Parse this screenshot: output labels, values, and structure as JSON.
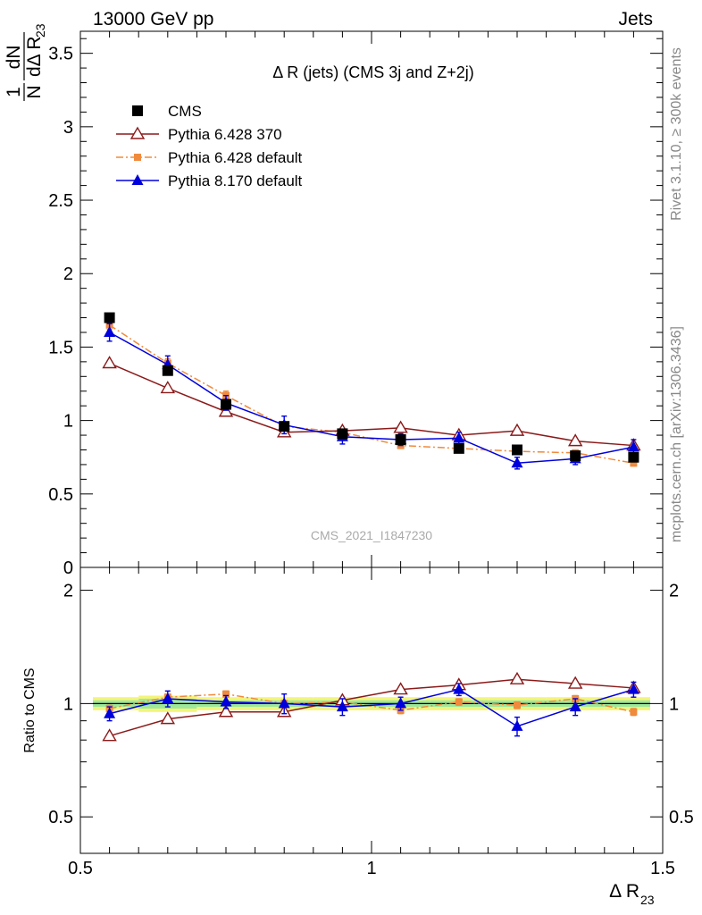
{
  "header": {
    "left": "13000 GeV pp",
    "right": "Jets"
  },
  "side_text": {
    "rivet": "Rivet 3.1.10, ≥ 300k events",
    "mcplots": "mcplots.cern.ch [arXiv:1306.3436]"
  },
  "watermark": "CMS_2021_I1847230",
  "chart_data": [
    {
      "type": "scatter",
      "panel": "main",
      "title": "Δ R (jets) (CMS 3j and Z+2j)",
      "ylabel_prefix": "1",
      "ylabel_num": "dN",
      "ylabel_den_n": "N",
      "ylabel_den": "dΔ R",
      "ylabel_sub": "23",
      "xlim": [
        0.5,
        1.5
      ],
      "ylim": [
        0,
        3.65
      ],
      "yticks": [
        0,
        0.5,
        1,
        1.5,
        2,
        2.5,
        3,
        3.5
      ],
      "yticklabels": [
        "0",
        "0.5",
        "1",
        "1.5",
        "2",
        "2.5",
        "3",
        "3.5"
      ],
      "x": [
        0.55,
        0.65,
        0.75,
        0.85,
        0.95,
        1.05,
        1.15,
        1.25,
        1.35,
        1.45
      ],
      "legend_position": "top-left",
      "series": [
        {
          "name": "CMS",
          "color": "#000000",
          "marker": "square",
          "line": "none",
          "values": [
            1.7,
            1.34,
            1.11,
            0.96,
            0.91,
            0.87,
            0.81,
            0.8,
            0.76,
            0.75
          ]
        },
        {
          "name": "Pythia 6.428 370",
          "color": "#8b1a1a",
          "marker": "open-triangle",
          "line": "solid",
          "values": [
            1.39,
            1.22,
            1.06,
            0.92,
            0.93,
            0.95,
            0.9,
            0.93,
            0.86,
            0.83
          ],
          "errors": [
            0.01,
            0.01,
            0.01,
            0.01,
            0.01,
            0.01,
            0.01,
            0.01,
            0.01,
            0.01
          ]
        },
        {
          "name": "Pythia 6.428 default",
          "color": "#f08a3c",
          "marker": "small-square",
          "line": "dashdot",
          "values": [
            1.65,
            1.39,
            1.17,
            0.96,
            0.92,
            0.83,
            0.81,
            0.79,
            0.78,
            0.71
          ],
          "errors": [
            0.03,
            0.03,
            0.03,
            0.03,
            0.03,
            0.02,
            0.02,
            0.02,
            0.02,
            0.02
          ]
        },
        {
          "name": "Pythia 8.170 default",
          "color": "#0000dd",
          "marker": "triangle",
          "line": "solid",
          "values": [
            1.6,
            1.38,
            1.12,
            0.97,
            0.89,
            0.87,
            0.88,
            0.71,
            0.74,
            0.82
          ],
          "errors": [
            0.06,
            0.06,
            0.05,
            0.06,
            0.05,
            0.04,
            0.04,
            0.04,
            0.04,
            0.05
          ]
        }
      ]
    },
    {
      "type": "scatter",
      "panel": "ratio",
      "ylabel": "Ratio to CMS",
      "xlabel": "Δ R",
      "xlabel_sub": "23",
      "xlim": [
        0.5,
        1.5
      ],
      "ylim": [
        0.4,
        2.3
      ],
      "log_y": true,
      "xticks": [
        0.5,
        1,
        1.5
      ],
      "xticklabels": [
        "0.5",
        "1",
        "1.5"
      ],
      "yticks": [
        0.5,
        1,
        2
      ],
      "yticklabels": [
        "0.5",
        "1",
        "2"
      ],
      "x": [
        0.55,
        0.65,
        0.75,
        0.85,
        0.95,
        1.05,
        1.15,
        1.25,
        1.35,
        1.45
      ],
      "reference": 1.0,
      "band_inner": [
        0.02,
        0.03,
        0.02,
        0.02,
        0.02,
        0.02,
        0.02,
        0.02,
        0.02,
        0.02
      ],
      "band_outer": [
        0.04,
        0.05,
        0.04,
        0.04,
        0.04,
        0.04,
        0.04,
        0.04,
        0.04,
        0.04
      ],
      "series": [
        {
          "name": "Pythia 6.428 370",
          "color": "#8b1a1a",
          "marker": "open-triangle",
          "line": "solid",
          "values": [
            0.82,
            0.91,
            0.95,
            0.95,
            1.02,
            1.09,
            1.12,
            1.16,
            1.13,
            1.1
          ],
          "errors": [
            0.01,
            0.01,
            0.01,
            0.01,
            0.01,
            0.01,
            0.01,
            0.01,
            0.01,
            0.01
          ]
        },
        {
          "name": "Pythia 6.428 default",
          "color": "#f08a3c",
          "marker": "small-square",
          "line": "dashdot",
          "values": [
            0.97,
            1.04,
            1.06,
            1.0,
            1.01,
            0.96,
            1.01,
            0.99,
            1.03,
            0.95
          ],
          "errors": [
            0.02,
            0.02,
            0.02,
            0.02,
            0.02,
            0.02,
            0.02,
            0.02,
            0.02,
            0.02
          ]
        },
        {
          "name": "Pythia 8.170 default",
          "color": "#0000dd",
          "marker": "triangle",
          "line": "solid",
          "values": [
            0.94,
            1.03,
            1.01,
            1.0,
            0.98,
            1.0,
            1.09,
            0.87,
            0.98,
            1.09
          ],
          "errors": [
            0.04,
            0.05,
            0.04,
            0.06,
            0.05,
            0.04,
            0.04,
            0.05,
            0.05,
            0.05
          ]
        }
      ]
    }
  ]
}
